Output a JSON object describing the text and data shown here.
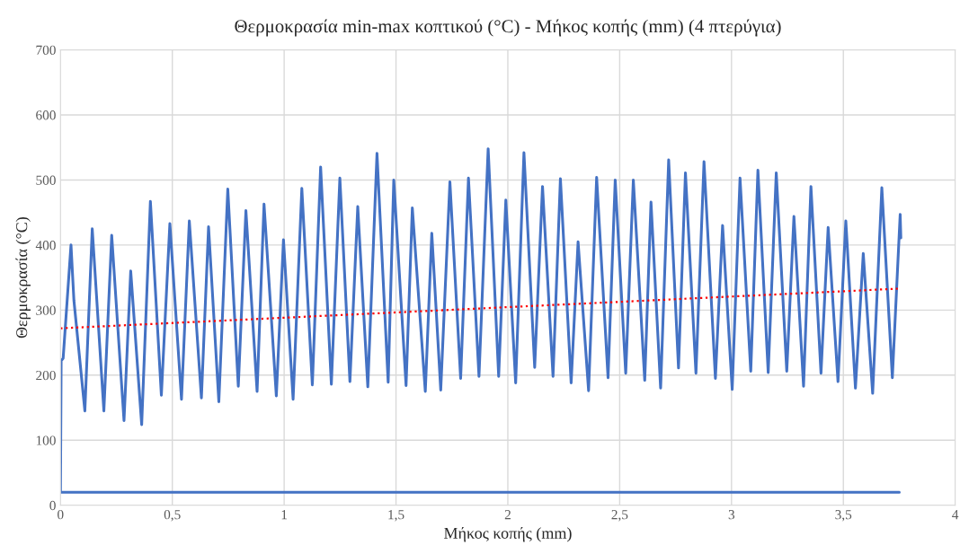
{
  "chart_data": {
    "type": "line",
    "title": "Θερμοκρασία min-max κοπτικού (°C) - Μήκος κοπής (mm) (4 πτερύγια)",
    "xlabel": "Μήκος κοπής (mm)",
    "ylabel": "Θερμοκρασία (°C)",
    "xlim": [
      0,
      4
    ],
    "xticks": [
      0,
      {
        "value": 0.5,
        "label": "0,5"
      },
      1,
      {
        "value": 1.5,
        "label": "1,5"
      },
      2,
      {
        "value": 2.5,
        "label": "2,5"
      },
      3,
      {
        "value": 3.5,
        "label": "3,5"
      },
      4
    ],
    "ylim": [
      0,
      700
    ],
    "yticks": [
      0,
      100,
      200,
      300,
      400,
      500,
      600,
      700
    ],
    "grid": true,
    "series": [
      {
        "color": "#4472c4",
        "line_style": "solid",
        "x": [
          3.75,
          0,
          0.003,
          0.012,
          0.047,
          0.06,
          0.109,
          0.142,
          0.194,
          0.229,
          0.284,
          0.314,
          0.363,
          0.402,
          0.451,
          0.489,
          0.541,
          0.576,
          0.63,
          0.662,
          0.708,
          0.748,
          0.795,
          0.829,
          0.879,
          0.91,
          0.965,
          0.997,
          1.04,
          1.079,
          1.126,
          1.163,
          1.211,
          1.249,
          1.294,
          1.329,
          1.374,
          1.415,
          1.465,
          1.49,
          1.545,
          1.573,
          1.631,
          1.66,
          1.7,
          1.741,
          1.789,
          1.824,
          1.871,
          1.912,
          1.959,
          1.991,
          2.035,
          2.072,
          2.12,
          2.155,
          2.202,
          2.235,
          2.283,
          2.314,
          2.361,
          2.397,
          2.448,
          2.48,
          2.527,
          2.561,
          2.612,
          2.64,
          2.683,
          2.719,
          2.763,
          2.794,
          2.841,
          2.877,
          2.928,
          2.96,
          3.003,
          3.038,
          3.086,
          3.118,
          3.164,
          3.2,
          3.247,
          3.279,
          3.322,
          3.355,
          3.4,
          3.432,
          3.476,
          3.511,
          3.554,
          3.589,
          3.631,
          3.672,
          3.719,
          3.754,
          3.757
        ],
        "values": [
          20,
          20,
          222,
          226,
          400,
          315,
          145,
          425,
          145,
          415,
          130,
          360,
          124,
          467,
          169,
          433,
          163,
          437,
          165,
          428,
          159,
          486,
          183,
          453,
          175,
          463,
          168,
          408,
          163,
          487,
          185,
          520,
          186,
          503,
          190,
          459,
          182,
          541,
          189,
          500,
          184,
          457,
          175,
          418,
          177,
          497,
          195,
          503,
          198,
          548,
          198,
          469,
          188,
          542,
          212,
          490,
          198,
          502,
          188,
          405,
          176,
          504,
          196,
          500,
          203,
          500,
          192,
          466,
          180,
          531,
          211,
          511,
          203,
          528,
          195,
          430,
          178,
          503,
          206,
          515,
          204,
          511,
          206,
          444,
          183,
          490,
          203,
          427,
          190,
          437,
          180,
          387,
          172,
          488,
          196,
          447,
          411
        ]
      },
      {
        "color": "#ff0000",
        "line_style": "dotted",
        "x": [
          0,
          3.75
        ],
        "values": [
          272,
          333
        ]
      }
    ]
  }
}
